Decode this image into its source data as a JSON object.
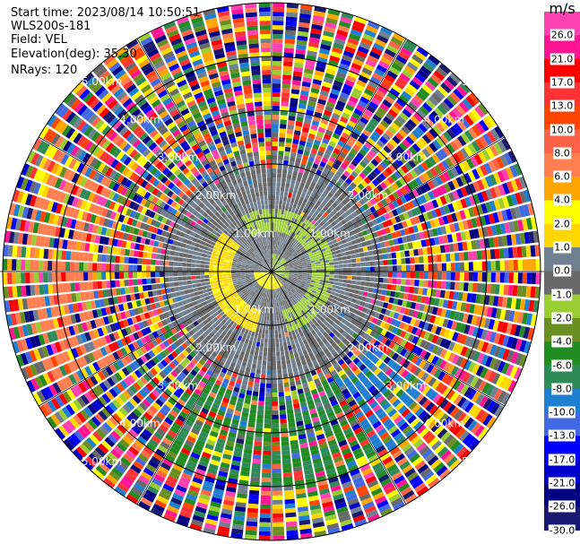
{
  "header": {
    "start_time": "Start time: 2023/08/14 10:50:51",
    "instrument": "WLS200s-181",
    "field": "Field: VEL",
    "elevation": "Elevation(deg): 35.30",
    "nrays": "NRays: 120"
  },
  "chart_data": {
    "type": "ppi",
    "field": "VEL",
    "units": "m/s",
    "nrays": 120,
    "azimuth_step_deg": 3,
    "max_range_km": 5,
    "range_rings": [
      {
        "km": 1,
        "label": "1.00km"
      },
      {
        "km": 2,
        "label": "2.00km"
      },
      {
        "km": 3,
        "label": "3.00km"
      },
      {
        "km": 4,
        "label": "4.00km"
      },
      {
        "km": 5,
        "label": "5.00km"
      }
    ],
    "spoke_interval_deg": 30,
    "colorbar": {
      "title": "m/s",
      "bounds": [
        -30,
        -26,
        -21,
        -17,
        -13,
        -10,
        -8,
        -6,
        -4,
        -2,
        -1,
        0,
        1,
        2,
        4,
        6,
        8,
        10,
        13,
        17,
        21,
        26,
        30
      ],
      "tick_labels": [
        "26.0",
        "21.0",
        "17.0",
        "13.0",
        "10.0",
        "8.0",
        "6.0",
        "4.0",
        "2.0",
        "1.0",
        "0.0",
        "-1.0",
        "-2.0",
        "-4.0",
        "-6.0",
        "-8.0",
        "-10.0",
        "-13.0",
        "-17.0",
        "-21.0",
        "-26.0",
        "-30.0"
      ],
      "colors": [
        "#191970",
        "#000080",
        "#0000cd",
        "#0000ff",
        "#4169e1",
        "#1e7fd0",
        "#2e8b57",
        "#228b22",
        "#6b8e23",
        "#9acd32",
        "#696969",
        "#708090",
        "#ffd700",
        "#ffff00",
        "#ffa500",
        "#ff7f50",
        "#ff6347",
        "#ff4500",
        "#ff3333",
        "#ff0000",
        "#ff1493",
        "#ff40b0"
      ]
    }
  }
}
